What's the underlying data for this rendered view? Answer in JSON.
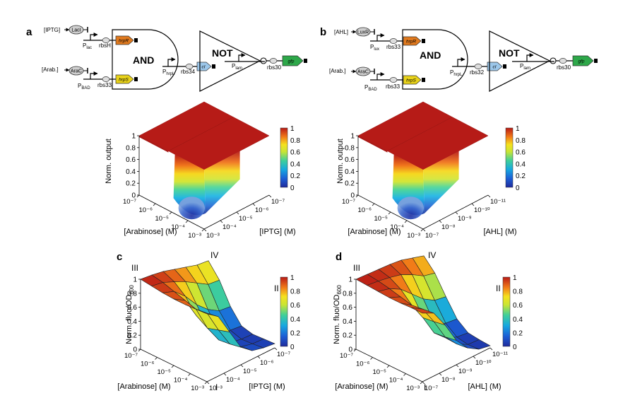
{
  "figure": {
    "panels": {
      "a": {
        "letter": "a",
        "input1": "[IPTG]",
        "input2": "[Arab.]",
        "tf1": "LacI",
        "tf2": "AraC",
        "promoter1": "P",
        "promoter1_sub": "lac",
        "rbs1": "rbsH",
        "promoter2": "P",
        "promoter2_sub": "BAD",
        "rbs2": "rbs33",
        "gene1": "hrpR",
        "gene2": "hrpS",
        "and_label": "AND",
        "promoter3": "P",
        "promoter3_sub": "hrpL",
        "rbs3": "rbs34",
        "gene3": "cI",
        "not_label": "NOT",
        "promoter4": "P",
        "promoter4_sub": "lam",
        "rbs4": "rbs30",
        "gene4": "gfp"
      },
      "b": {
        "letter": "b",
        "input1": "[AHL]",
        "input2": "[Arab.]",
        "tf1": "LuxR",
        "tf2": "AraC",
        "promoter1": "P",
        "promoter1_sub": "lux",
        "rbs1": "rbs33",
        "promoter2": "P",
        "promoter2_sub": "BAD",
        "rbs2": "rbs33",
        "gene1": "hrpR",
        "gene2": "hrpS",
        "and_label": "AND",
        "promoter3": "P",
        "promoter3_sub": "hrpL",
        "rbs3": "rbs32",
        "gene3": "cI",
        "not_label": "NOT",
        "promoter4": "P",
        "promoter4_sub": "lam",
        "rbs4": "rbs30",
        "gene4": "gfp"
      },
      "c": {
        "letter": "c",
        "corner_III": "III",
        "corner_IV": "IV",
        "corner_II": "II",
        "corner_I": "I"
      },
      "d": {
        "letter": "d",
        "corner_III": "III",
        "corner_IV": "IV",
        "corner_II": "II",
        "corner_I": "I"
      }
    },
    "colors": {
      "gene_hrpR": "#e07a1f",
      "gene_hrpS": "#e8d21a",
      "gene_cI": "#9cc7ea",
      "gene_gfp": "#2ea84a",
      "tf_fill": "#cfcfcf"
    }
  },
  "chart_data": [
    {
      "panel": "a",
      "type": "surface",
      "zlabel": "Norm. output",
      "xlabel": "[Arabinose] (M)",
      "ylabel": "[IPTG] (M)",
      "zticks": [
        "0",
        "0.2",
        "0.4",
        "0.6",
        "0.8",
        "1"
      ],
      "xticks": [
        "10⁻⁷",
        "10⁻⁶",
        "10⁻⁵",
        "10⁻⁴",
        "10⁻³"
      ],
      "yticks": [
        "10⁻³",
        "10⁻⁴",
        "10⁻⁵",
        "10⁻⁶",
        "10⁻⁷"
      ],
      "colorbar": {
        "ticks": [
          "0",
          "0.2",
          "0.4",
          "0.6",
          "0.8",
          "1"
        ],
        "range": [
          0,
          1
        ]
      },
      "zlim": [
        0,
        1
      ],
      "description_values": {
        "plateau": 1,
        "minimum": 0.05
      }
    },
    {
      "panel": "b",
      "type": "surface",
      "zlabel": "Norm. output",
      "xlabel": "[Arabinose] (M)",
      "ylabel": "[AHL] (M)",
      "zticks": [
        "0",
        "0.2",
        "0.4",
        "0.6",
        "0.8",
        "1"
      ],
      "xticks": [
        "10⁻⁷",
        "10⁻⁶",
        "10⁻⁵",
        "10⁻⁴",
        "10⁻³"
      ],
      "yticks": [
        "10⁻⁷",
        "10⁻⁸",
        "10⁻⁹",
        "10⁻¹⁰",
        "10⁻¹¹"
      ],
      "colorbar": {
        "ticks": [
          "0",
          "0.2",
          "0.4",
          "0.6",
          "0.8",
          "1"
        ],
        "range": [
          0,
          1
        ]
      },
      "zlim": [
        0,
        1
      ],
      "description_values": {
        "plateau": 1,
        "minimum": 0.05
      }
    },
    {
      "panel": "c",
      "type": "surface",
      "zlabel": "Norm. fluo/OD",
      "zlabel_sub": "600",
      "xlabel": "[Arabinose] (M)",
      "ylabel": "[IPTG] (M)",
      "zticks": [
        "0",
        "0.2",
        "0.4",
        "0.6",
        "0.8",
        "1"
      ],
      "xticks": [
        "10⁻⁷",
        "10⁻⁶",
        "10⁻⁵",
        "10⁻⁴",
        "10⁻³"
      ],
      "yticks": [
        "10⁻³",
        "10⁻⁴",
        "10⁻⁵",
        "10⁻⁶",
        "10⁻⁷"
      ],
      "colorbar": {
        "ticks": [
          "0",
          "0.2",
          "0.4",
          "0.6",
          "0.8",
          "1"
        ],
        "range": [
          0,
          1
        ]
      },
      "zlim": [
        0,
        1
      ],
      "grid_values": [
        [
          1.0,
          0.98,
          0.95,
          0.9,
          0.85,
          0.8,
          0.78
        ],
        [
          0.98,
          0.95,
          0.88,
          0.8,
          0.7,
          0.6,
          0.58
        ],
        [
          0.96,
          0.9,
          0.75,
          0.55,
          0.4,
          0.3,
          0.28
        ],
        [
          0.95,
          0.85,
          0.55,
          0.3,
          0.15,
          0.1,
          0.08
        ],
        [
          0.95,
          0.8,
          0.45,
          0.2,
          0.08,
          0.05,
          0.04
        ],
        [
          0.96,
          0.82,
          0.5,
          0.22,
          0.1,
          0.06,
          0.05
        ],
        [
          0.97,
          0.85,
          0.55,
          0.25,
          0.12,
          0.08,
          0.06
        ]
      ]
    },
    {
      "panel": "d",
      "type": "surface",
      "zlabel": "Norm. fluo/OD",
      "zlabel_sub": "600",
      "xlabel": "[Arabinose] (M)",
      "ylabel": "[AHL] (M)",
      "zticks": [
        "0",
        "0.2",
        "0.4",
        "0.6",
        "0.8",
        "1"
      ],
      "xticks": [
        "10⁻⁷",
        "10⁻⁶",
        "10⁻⁵",
        "10⁻⁴",
        "10⁻³"
      ],
      "yticks": [
        "10⁻⁷",
        "10⁻⁸",
        "10⁻⁹",
        "10⁻¹⁰",
        "10⁻¹¹"
      ],
      "colorbar": {
        "ticks": [
          "0",
          "0.2",
          "0.4",
          "0.6",
          "0.8",
          "1"
        ],
        "range": [
          0,
          1
        ]
      },
      "zlim": [
        0,
        1
      ],
      "grid_values": [
        [
          1.0,
          0.99,
          0.98,
          0.97,
          0.95,
          0.9,
          0.85
        ],
        [
          0.99,
          0.97,
          0.94,
          0.9,
          0.82,
          0.72,
          0.68
        ],
        [
          0.98,
          0.94,
          0.85,
          0.7,
          0.55,
          0.45,
          0.42
        ],
        [
          0.97,
          0.9,
          0.7,
          0.45,
          0.28,
          0.2,
          0.18
        ],
        [
          0.97,
          0.86,
          0.6,
          0.3,
          0.15,
          0.08,
          0.06
        ],
        [
          0.98,
          0.88,
          0.62,
          0.32,
          0.14,
          0.05,
          0.04
        ],
        [
          0.98,
          0.9,
          0.65,
          0.35,
          0.16,
          0.06,
          0.03
        ]
      ]
    }
  ]
}
